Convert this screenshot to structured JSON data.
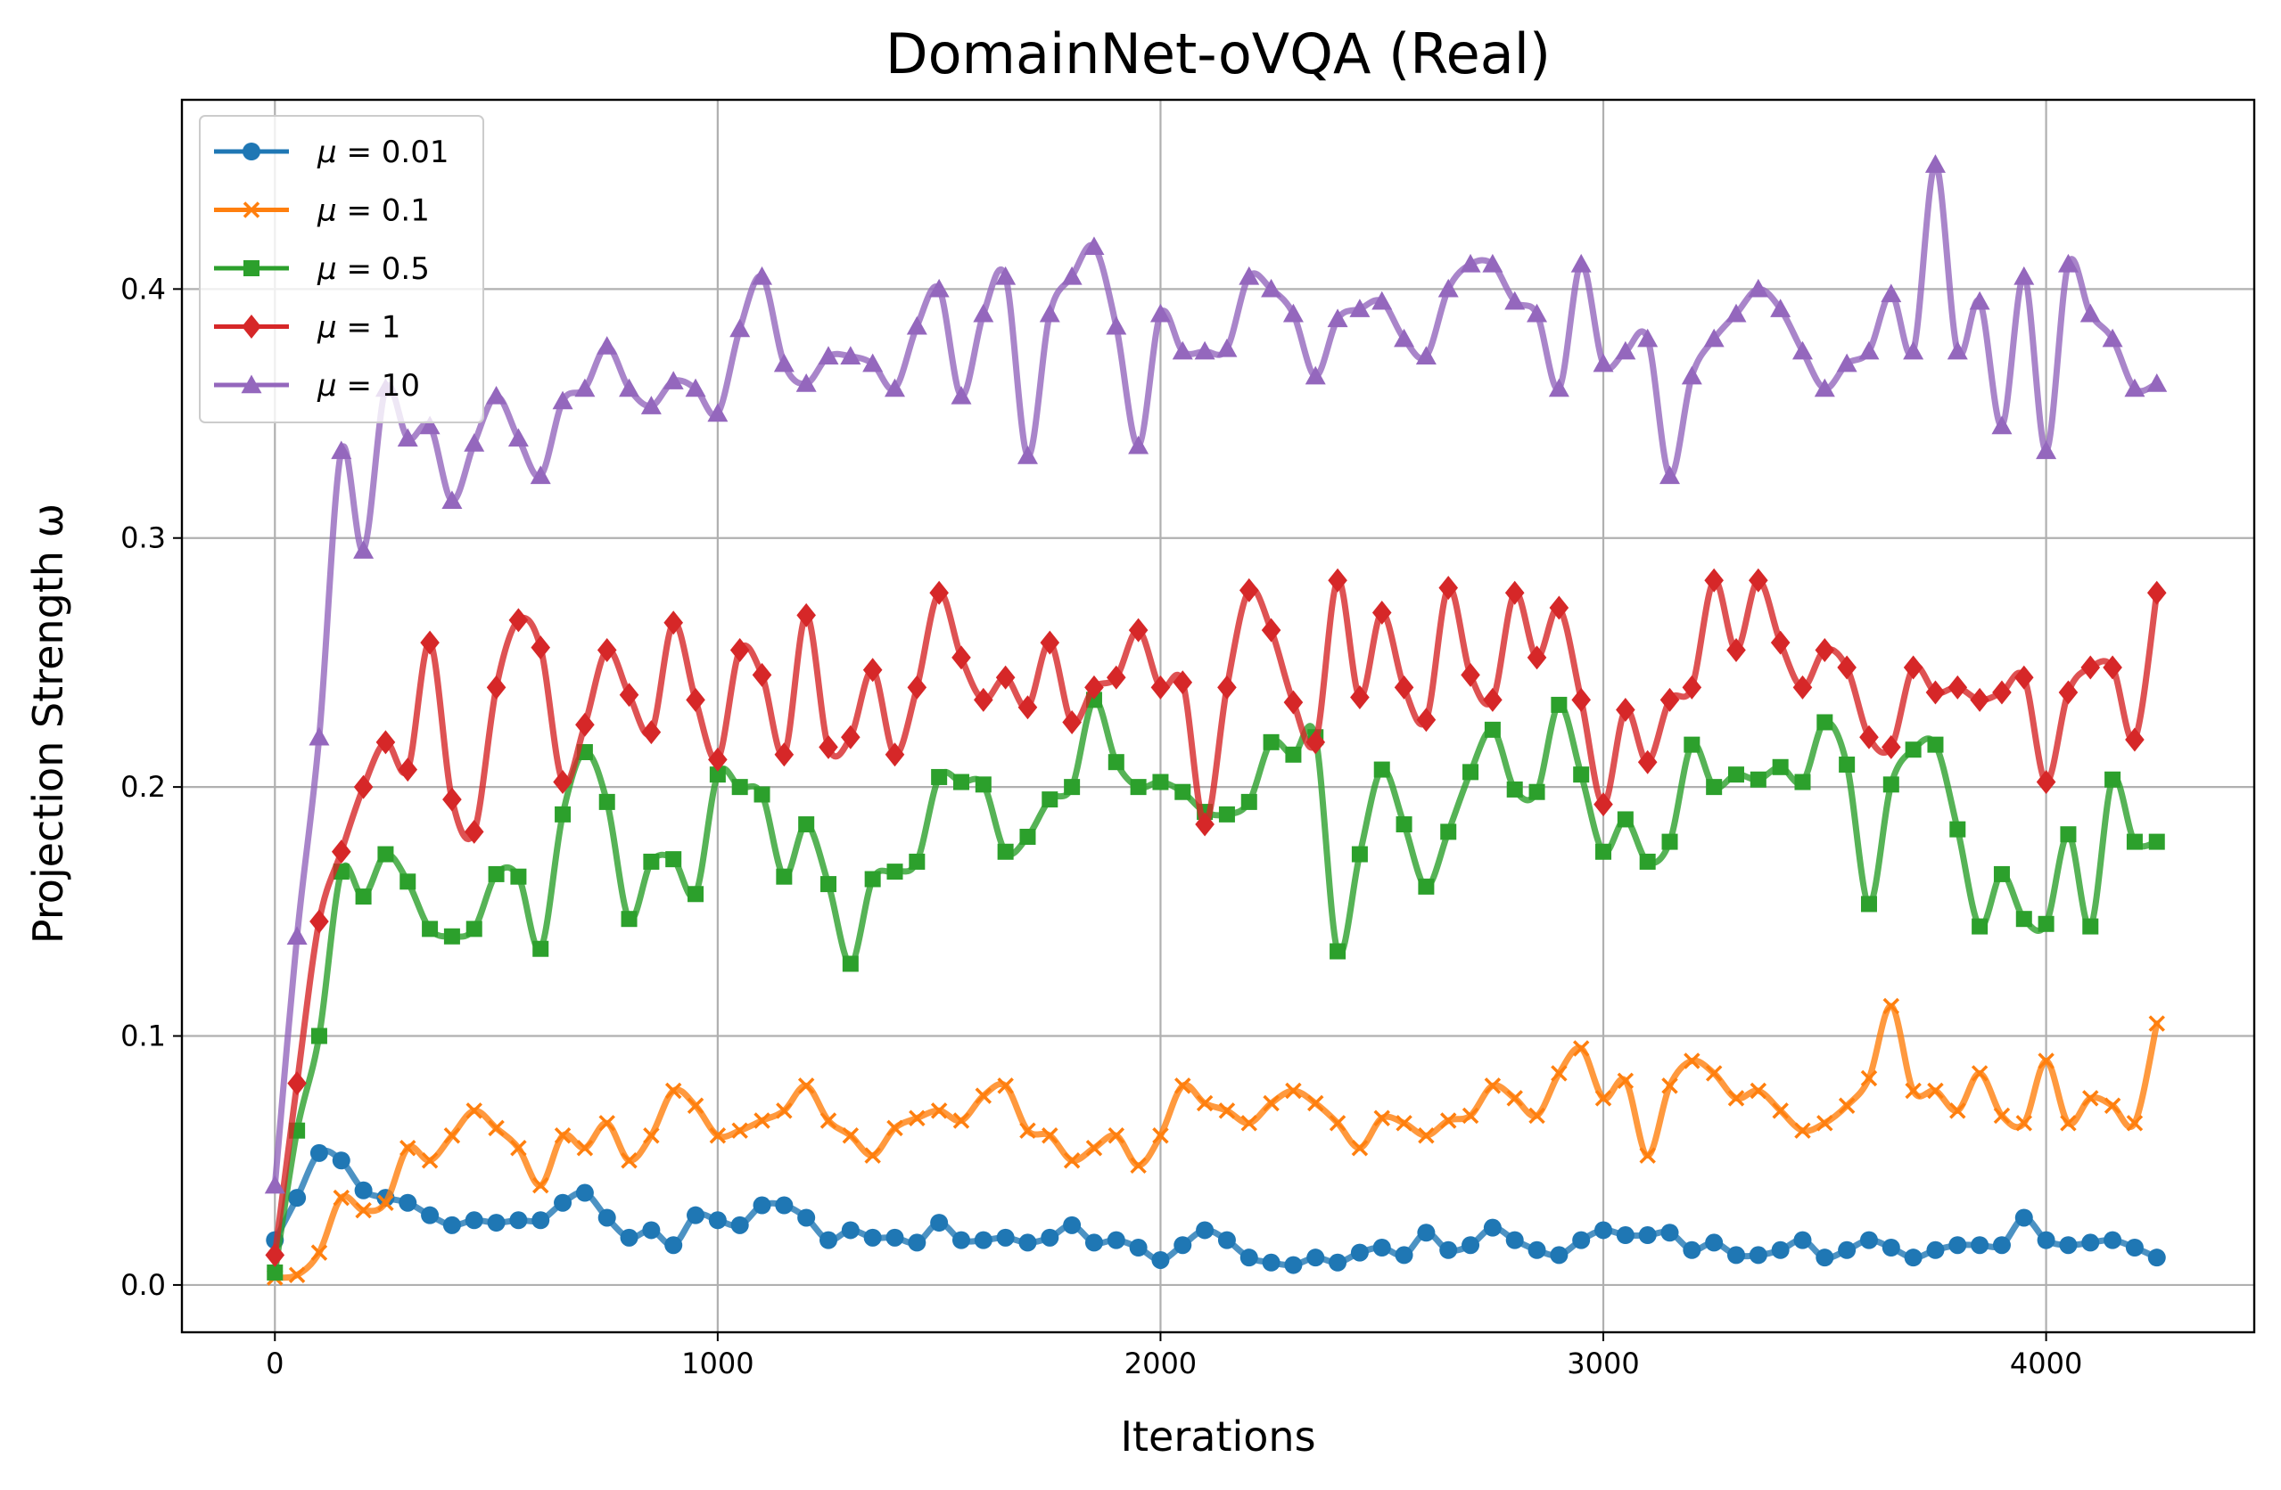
{
  "chart_data": {
    "type": "line",
    "title": "DomainNet-oVQA (Real)",
    "xlabel": "Iterations",
    "ylabel": "Projection Strength ω",
    "xlim": [
      -210,
      4470
    ],
    "ylim": [
      -0.019,
      0.476
    ],
    "xticks": [
      0,
      1000,
      2000,
      3000,
      4000
    ],
    "yticks": [
      0.0,
      0.1,
      0.2,
      0.3,
      0.4
    ],
    "xtick_labels": [
      "0",
      "1000",
      "2000",
      "3000",
      "4000"
    ],
    "ytick_labels": [
      "0.0",
      "0.1",
      "0.2",
      "0.3",
      "0.4"
    ],
    "grid": true,
    "legend_position": "top-left",
    "series": [
      {
        "name": "μ = 0.01",
        "label_prefix": "μ = ",
        "label_value": "0.01",
        "color": "#1f77b4",
        "marker": "circle",
        "x": [
          0,
          50,
          100,
          150,
          200,
          250,
          300,
          350,
          400,
          450,
          500,
          550,
          600,
          650,
          700,
          750,
          800,
          850,
          900,
          950,
          1000,
          1050,
          1100,
          1150,
          1200,
          1250,
          1300,
          1350,
          1400,
          1450,
          1500,
          1550,
          1600,
          1650,
          1700,
          1750,
          1800,
          1850,
          1900,
          1950,
          2000,
          2050,
          2100,
          2150,
          2200,
          2250,
          2300,
          2350,
          2400,
          2450,
          2500,
          2550,
          2600,
          2650,
          2700,
          2750,
          2800,
          2850,
          2900,
          2950,
          3000,
          3050,
          3100,
          3150,
          3200,
          3250,
          3300,
          3350,
          3400,
          3450,
          3500,
          3550,
          3600,
          3650,
          3700,
          3750,
          3800,
          3850,
          3900,
          3950,
          4000,
          4050,
          4100,
          4150,
          4200,
          4250
        ],
        "values": [
          0.018,
          0.035,
          0.053,
          0.05,
          0.038,
          0.035,
          0.033,
          0.028,
          0.024,
          0.026,
          0.025,
          0.026,
          0.026,
          0.033,
          0.037,
          0.027,
          0.019,
          0.022,
          0.016,
          0.028,
          0.026,
          0.024,
          0.032,
          0.032,
          0.027,
          0.018,
          0.022,
          0.019,
          0.019,
          0.017,
          0.025,
          0.018,
          0.018,
          0.019,
          0.017,
          0.019,
          0.024,
          0.017,
          0.018,
          0.015,
          0.01,
          0.016,
          0.022,
          0.018,
          0.011,
          0.009,
          0.008,
          0.011,
          0.009,
          0.013,
          0.015,
          0.012,
          0.021,
          0.014,
          0.016,
          0.023,
          0.018,
          0.014,
          0.012,
          0.018,
          0.022,
          0.02,
          0.02,
          0.021,
          0.014,
          0.017,
          0.012,
          0.012,
          0.014,
          0.018,
          0.011,
          0.014,
          0.018,
          0.015,
          0.011,
          0.014,
          0.016,
          0.016,
          0.016,
          0.027,
          0.018,
          0.016,
          0.017,
          0.018,
          0.015,
          0.011
        ]
      },
      {
        "name": "μ = 0.1",
        "label_prefix": "μ = ",
        "label_value": "0.1",
        "color": "#ff7f0e",
        "marker": "x",
        "x": [
          0,
          50,
          100,
          150,
          200,
          250,
          300,
          350,
          400,
          450,
          500,
          550,
          600,
          650,
          700,
          750,
          800,
          850,
          900,
          950,
          1000,
          1050,
          1100,
          1150,
          1200,
          1250,
          1300,
          1350,
          1400,
          1450,
          1500,
          1550,
          1600,
          1650,
          1700,
          1750,
          1800,
          1850,
          1900,
          1950,
          2000,
          2050,
          2100,
          2150,
          2200,
          2250,
          2300,
          2350,
          2400,
          2450,
          2500,
          2550,
          2600,
          2650,
          2700,
          2750,
          2800,
          2850,
          2900,
          2950,
          3000,
          3050,
          3100,
          3150,
          3200,
          3250,
          3300,
          3350,
          3400,
          3450,
          3500,
          3550,
          3600,
          3650,
          3700,
          3750,
          3800,
          3850,
          3900,
          3950,
          4000,
          4050,
          4100,
          4150,
          4200,
          4250
        ],
        "values": [
          0.003,
          0.004,
          0.013,
          0.035,
          0.03,
          0.033,
          0.055,
          0.05,
          0.06,
          0.07,
          0.063,
          0.055,
          0.04,
          0.06,
          0.055,
          0.065,
          0.05,
          0.06,
          0.078,
          0.072,
          0.06,
          0.062,
          0.066,
          0.07,
          0.08,
          0.066,
          0.06,
          0.052,
          0.063,
          0.067,
          0.07,
          0.066,
          0.076,
          0.08,
          0.062,
          0.06,
          0.05,
          0.055,
          0.06,
          0.048,
          0.06,
          0.08,
          0.073,
          0.07,
          0.065,
          0.073,
          0.078,
          0.073,
          0.065,
          0.055,
          0.067,
          0.065,
          0.06,
          0.066,
          0.068,
          0.08,
          0.075,
          0.068,
          0.085,
          0.095,
          0.075,
          0.082,
          0.052,
          0.08,
          0.09,
          0.085,
          0.075,
          0.078,
          0.07,
          0.062,
          0.065,
          0.072,
          0.083,
          0.112,
          0.078,
          0.078,
          0.07,
          0.085,
          0.068,
          0.065,
          0.09,
          0.065,
          0.075,
          0.072,
          0.065,
          0.105
        ]
      },
      {
        "name": "μ = 0.5",
        "label_prefix": "μ = ",
        "label_value": "0.5",
        "color": "#2ca02c",
        "marker": "square",
        "x": [
          0,
          50,
          100,
          150,
          200,
          250,
          300,
          350,
          400,
          450,
          500,
          550,
          600,
          650,
          700,
          750,
          800,
          850,
          900,
          950,
          1000,
          1050,
          1100,
          1150,
          1200,
          1250,
          1300,
          1350,
          1400,
          1450,
          1500,
          1550,
          1600,
          1650,
          1700,
          1750,
          1800,
          1850,
          1900,
          1950,
          2000,
          2050,
          2100,
          2150,
          2200,
          2250,
          2300,
          2350,
          2400,
          2450,
          2500,
          2550,
          2600,
          2650,
          2700,
          2750,
          2800,
          2850,
          2900,
          2950,
          3000,
          3050,
          3100,
          3150,
          3200,
          3250,
          3300,
          3350,
          3400,
          3450,
          3500,
          3550,
          3600,
          3650,
          3700,
          3750,
          3800,
          3850,
          3900,
          3950,
          4000,
          4050,
          4100,
          4150,
          4200,
          4250
        ],
        "values": [
          0.005,
          0.062,
          0.1,
          0.166,
          0.156,
          0.173,
          0.162,
          0.143,
          0.14,
          0.143,
          0.165,
          0.164,
          0.135,
          0.189,
          0.214,
          0.194,
          0.147,
          0.17,
          0.171,
          0.157,
          0.205,
          0.2,
          0.197,
          0.164,
          0.185,
          0.161,
          0.129,
          0.163,
          0.166,
          0.17,
          0.204,
          0.202,
          0.201,
          0.174,
          0.18,
          0.195,
          0.2,
          0.235,
          0.21,
          0.2,
          0.202,
          0.198,
          0.19,
          0.189,
          0.194,
          0.218,
          0.213,
          0.22,
          0.134,
          0.173,
          0.207,
          0.185,
          0.16,
          0.182,
          0.206,
          0.223,
          0.199,
          0.198,
          0.233,
          0.205,
          0.174,
          0.187,
          0.17,
          0.178,
          0.217,
          0.2,
          0.205,
          0.203,
          0.208,
          0.202,
          0.226,
          0.209,
          0.153,
          0.201,
          0.215,
          0.217,
          0.183,
          0.144,
          0.165,
          0.147,
          0.145,
          0.181,
          0.144,
          0.203,
          0.178,
          0.178
        ]
      },
      {
        "name": "μ = 1",
        "label_prefix": "μ = ",
        "label_value": "1",
        "color": "#d62728",
        "marker": "diamond",
        "x": [
          0,
          50,
          100,
          150,
          200,
          250,
          300,
          350,
          400,
          450,
          500,
          550,
          600,
          650,
          700,
          750,
          800,
          850,
          900,
          950,
          1000,
          1050,
          1100,
          1150,
          1200,
          1250,
          1300,
          1350,
          1400,
          1450,
          1500,
          1550,
          1600,
          1650,
          1700,
          1750,
          1800,
          1850,
          1900,
          1950,
          2000,
          2050,
          2100,
          2150,
          2200,
          2250,
          2300,
          2350,
          2400,
          2450,
          2500,
          2550,
          2600,
          2650,
          2700,
          2750,
          2800,
          2850,
          2900,
          2950,
          3000,
          3050,
          3100,
          3150,
          3200,
          3250,
          3300,
          3350,
          3400,
          3450,
          3500,
          3550,
          3600,
          3650,
          3700,
          3750,
          3800,
          3850,
          3900,
          3950,
          4000,
          4050,
          4100,
          4150,
          4200,
          4250
        ],
        "values": [
          0.012,
          0.081,
          0.146,
          0.174,
          0.2,
          0.218,
          0.207,
          0.258,
          0.195,
          0.182,
          0.24,
          0.267,
          0.256,
          0.202,
          0.225,
          0.255,
          0.237,
          0.222,
          0.266,
          0.235,
          0.211,
          0.255,
          0.245,
          0.213,
          0.269,
          0.216,
          0.22,
          0.247,
          0.213,
          0.24,
          0.278,
          0.252,
          0.235,
          0.244,
          0.232,
          0.258,
          0.226,
          0.24,
          0.244,
          0.263,
          0.24,
          0.242,
          0.185,
          0.24,
          0.279,
          0.263,
          0.234,
          0.218,
          0.283,
          0.236,
          0.27,
          0.24,
          0.227,
          0.28,
          0.245,
          0.235,
          0.278,
          0.252,
          0.272,
          0.235,
          0.193,
          0.231,
          0.21,
          0.235,
          0.24,
          0.283,
          0.255,
          0.283,
          0.258,
          0.24,
          0.255,
          0.248,
          0.22,
          0.216,
          0.248,
          0.238,
          0.24,
          0.235,
          0.238,
          0.244,
          0.202,
          0.238,
          0.248,
          0.248,
          0.219,
          0.278
        ]
      },
      {
        "name": "μ = 10",
        "label_prefix": "μ = ",
        "label_value": "10",
        "color": "#9467bd",
        "marker": "triangle-up",
        "x": [
          0,
          50,
          100,
          150,
          200,
          250,
          300,
          350,
          400,
          450,
          500,
          550,
          600,
          650,
          700,
          750,
          800,
          850,
          900,
          950,
          1000,
          1050,
          1100,
          1150,
          1200,
          1250,
          1300,
          1350,
          1400,
          1450,
          1500,
          1550,
          1600,
          1650,
          1700,
          1750,
          1800,
          1850,
          1900,
          1950,
          2000,
          2050,
          2100,
          2150,
          2200,
          2250,
          2300,
          2350,
          2400,
          2450,
          2500,
          2550,
          2600,
          2650,
          2700,
          2750,
          2800,
          2850,
          2900,
          2950,
          3000,
          3050,
          3100,
          3150,
          3200,
          3250,
          3300,
          3350,
          3400,
          3450,
          3500,
          3550,
          3600,
          3650,
          3700,
          3750,
          3800,
          3850,
          3900,
          3950,
          4000,
          4050,
          4100,
          4150,
          4200,
          4250
        ],
        "values": [
          0.04,
          0.14,
          0.22,
          0.335,
          0.295,
          0.36,
          0.34,
          0.345,
          0.315,
          0.338,
          0.357,
          0.34,
          0.325,
          0.355,
          0.36,
          0.377,
          0.36,
          0.353,
          0.363,
          0.36,
          0.35,
          0.384,
          0.405,
          0.37,
          0.362,
          0.373,
          0.373,
          0.37,
          0.36,
          0.385,
          0.4,
          0.357,
          0.39,
          0.405,
          0.333,
          0.39,
          0.405,
          0.417,
          0.385,
          0.337,
          0.39,
          0.375,
          0.375,
          0.376,
          0.405,
          0.4,
          0.39,
          0.365,
          0.388,
          0.392,
          0.395,
          0.38,
          0.373,
          0.4,
          0.41,
          0.41,
          0.395,
          0.39,
          0.36,
          0.41,
          0.37,
          0.375,
          0.38,
          0.325,
          0.365,
          0.38,
          0.39,
          0.4,
          0.392,
          0.375,
          0.36,
          0.37,
          0.375,
          0.398,
          0.375,
          0.45,
          0.375,
          0.395,
          0.345,
          0.405,
          0.335,
          0.41,
          0.39,
          0.38,
          0.36,
          0.362
        ]
      }
    ]
  }
}
